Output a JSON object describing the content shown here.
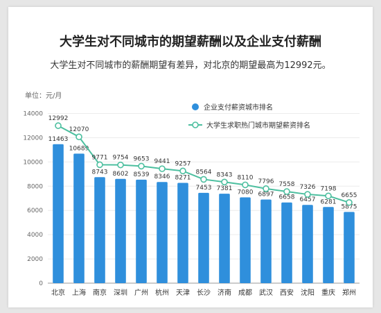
{
  "title": "大学生对不同城市的期望薪酬以及企业支付薪酬",
  "subtitle": "大学生对不同城市的薪酬期望有差异，对北京的期望最高为12992元。",
  "chart_data": {
    "type": "bar",
    "unit_label": "单位：元/月",
    "categories": [
      "北京",
      "上海",
      "南京",
      "深圳",
      "广州",
      "杭州",
      "天津",
      "长沙",
      "济南",
      "成都",
      "武汉",
      "西安",
      "沈阳",
      "重庆",
      "郑州"
    ],
    "ylim": [
      0,
      14000
    ],
    "yticks": [
      0,
      2000,
      4000,
      6000,
      8000,
      10000,
      12000,
      14000
    ],
    "grid": true,
    "legend_position": "top-right",
    "series": [
      {
        "name": "企业支付薪资城市排名",
        "type": "bar",
        "color": "#2f8fdc",
        "values": [
          11463,
          10689,
          8743,
          8602,
          8539,
          8346,
          8271,
          7453,
          7381,
          7080,
          6897,
          6658,
          6457,
          6281,
          5875
        ]
      },
      {
        "name": "大学生求职热门城市期望薪资排名",
        "type": "line",
        "color": "#4cbf9f",
        "values": [
          12992,
          12070,
          9771,
          9754,
          9653,
          9441,
          9257,
          8564,
          8343,
          8110,
          7796,
          7558,
          7326,
          7198,
          6655
        ]
      }
    ]
  }
}
